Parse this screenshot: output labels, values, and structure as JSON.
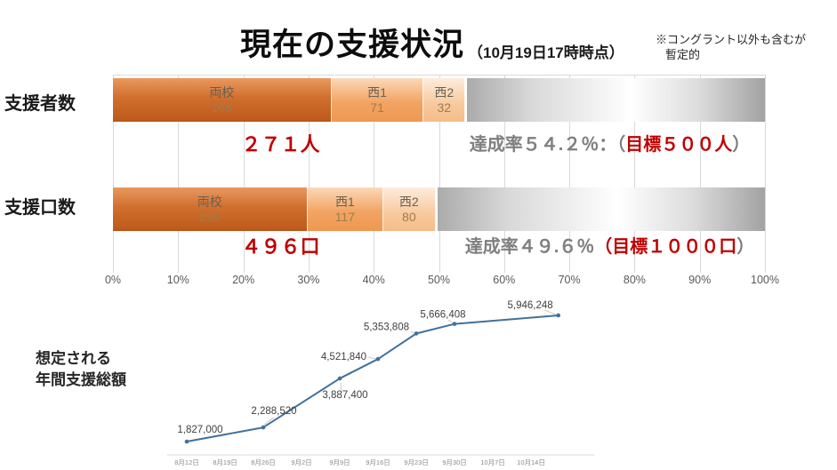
{
  "header": {
    "title": "現在の支援状況",
    "subtitle": "（10月19日17時時点）",
    "note_line1": "※コングラント以外も含むが",
    "note_line2": "暫定的"
  },
  "bar_chart": {
    "axis_ticks": [
      "0%",
      "10%",
      "20%",
      "30%",
      "40%",
      "50%",
      "60%",
      "70%",
      "80%",
      "90%",
      "100%"
    ],
    "rows": [
      {
        "label": "支援者数",
        "total": "２７１人",
        "rate": "達成率５４.２％：（",
        "target": "目標５００人",
        "suffix": "）",
        "filled_pct": 54.2,
        "segments": [
          {
            "name": "両校",
            "value": "168",
            "pct": 33.6
          },
          {
            "name": "西1",
            "value": "71",
            "pct": 14.2
          },
          {
            "name": "西2",
            "value": "32",
            "pct": 6.4
          }
        ]
      },
      {
        "label": "支援口数",
        "total": "４９６口",
        "rate": "達成率４９.６％",
        "target": "（目標１０００口",
        "suffix": "）",
        "filled_pct": 49.6,
        "segments": [
          {
            "name": "両校",
            "value": "299",
            "pct": 29.9
          },
          {
            "name": "西1",
            "value": "117",
            "pct": 11.7
          },
          {
            "name": "西2",
            "value": "80",
            "pct": 8.0
          }
        ]
      }
    ]
  },
  "line_chart": {
    "title_line1": "想定される",
    "title_line2": "年間支援総額",
    "x_ticks": [
      "8月12日",
      "8月19日",
      "8月26日",
      "9月2日",
      "9月9日",
      "9月16日",
      "9月23日",
      "9月30日",
      "10月7日",
      "10月14日"
    ],
    "points": [
      {
        "date": "8月12日",
        "day": 0,
        "value": 1827000,
        "label": "1,827,000"
      },
      {
        "date": "8月26日",
        "day": 14,
        "value": 2288520,
        "label": "2,288,520"
      },
      {
        "date": "9月9日",
        "day": 28,
        "value": 3887400,
        "label": "3,887,400"
      },
      {
        "date": "9月16日",
        "day": 35,
        "value": 4521840,
        "label": "4,521,840"
      },
      {
        "date": "9月23日",
        "day": 42,
        "value": 5353808,
        "label": "5,353,808"
      },
      {
        "date": "9月30日",
        "day": 49,
        "value": 5666408,
        "label": "5,666,408"
      },
      {
        "date": "10月19日",
        "day": 68,
        "value": 5946248,
        "label": "5,946,248"
      }
    ]
  },
  "colors": {
    "accent_red": "#c00000",
    "gray_text": "#7f7f7f",
    "line_blue": "#41719c",
    "data_label_gray": "#404040",
    "axis_tick_gray": "#8a8a8a",
    "gridline": "#d9d9d9",
    "segment_dark_orange": "#c9661f",
    "segment_mid_orange": "#f2a263",
    "segment_light_orange": "#f8cba0",
    "remainder_gray": "#ababab"
  },
  "chart_data": [
    {
      "type": "bar",
      "subtype": "horizontal-stacked",
      "title": "現在の支援状況（10月19日17時時点）",
      "categories": [
        "支援者数",
        "支援口数"
      ],
      "series": [
        {
          "name": "両校",
          "values": [
            168,
            299
          ]
        },
        {
          "name": "西1",
          "values": [
            71,
            117
          ]
        },
        {
          "name": "西2",
          "values": [
            32,
            80
          ]
        }
      ],
      "totals": [
        "２７１人",
        "４９６口"
      ],
      "targets": [
        "目標５００人",
        "目標１０００口"
      ],
      "achievement_rates_pct": [
        54.2,
        49.6
      ],
      "x_ticks": [
        "0%",
        "10%",
        "20%",
        "30%",
        "40%",
        "50%",
        "60%",
        "70%",
        "80%",
        "90%",
        "100%"
      ],
      "xlim": [
        0,
        100
      ],
      "grid": true,
      "legend_position": "none"
    },
    {
      "type": "line",
      "title": "想定される年間支援総額",
      "x": [
        "8月12日",
        "8月26日",
        "9月9日",
        "9月16日",
        "9月23日",
        "9月30日",
        "10月19日"
      ],
      "values": [
        1827000,
        2288520,
        3887400,
        4521840,
        5353808,
        5666408,
        5946248
      ],
      "data_labels": [
        "1,827,000",
        "2,288,520",
        "3,887,400",
        "4,521,840",
        "5,353,808",
        "5,666,408",
        "5,946,248"
      ],
      "x_axis_ticks": [
        "8月12日",
        "8月19日",
        "8月26日",
        "9月2日",
        "9月9日",
        "9月16日",
        "9月23日",
        "9月30日",
        "10月7日",
        "10月14日"
      ],
      "xlabel": "",
      "ylabel": "",
      "grid": false,
      "legend_position": "none"
    }
  ]
}
